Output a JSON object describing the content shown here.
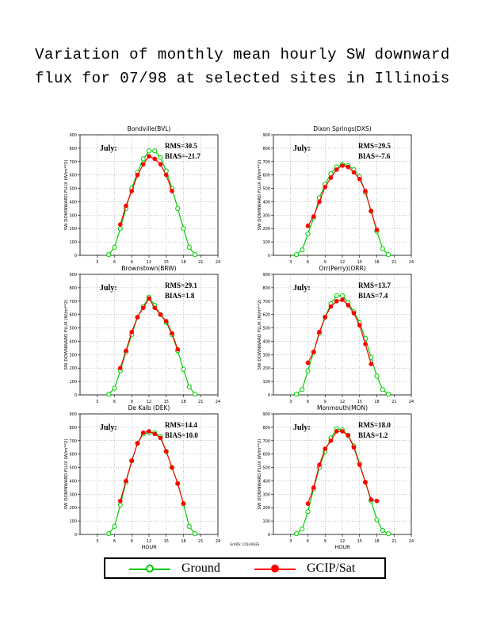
{
  "title_line1": "Variation of monthly mean hourly SW downward",
  "title_line2": "flux for 07/98 at selected sites in Illinois",
  "credit": "GrADS: COLA/IGES",
  "legend": {
    "ground_label": "Ground",
    "gcip_label": "GCIP/Sat",
    "ground_color": "#00cc00",
    "gcip_color": "#ff0000"
  },
  "chart_data": [
    {
      "type": "line",
      "title": "Bondville(BVL)",
      "annotation": "July:",
      "rms": "RMS=30.5",
      "bias": "BIAS=-21.7",
      "xlabel": "",
      "ylabel": "SW DOWNWARD FLUX (W/m**2)",
      "xlim": [
        0,
        24
      ],
      "ylim": [
        0,
        900
      ],
      "xticks": [
        3,
        6,
        9,
        12,
        15,
        18,
        21,
        24
      ],
      "yticks": [
        0,
        100,
        200,
        300,
        400,
        500,
        600,
        700,
        800,
        900
      ],
      "series": [
        {
          "name": "Ground",
          "x": [
            5,
            6,
            7,
            8,
            9,
            10,
            11,
            12,
            13,
            14,
            15,
            16,
            17,
            18,
            19,
            20
          ],
          "y": [
            5,
            60,
            200,
            350,
            500,
            620,
            720,
            780,
            780,
            730,
            630,
            500,
            350,
            200,
            60,
            5
          ]
        },
        {
          "name": "GCIP/Sat",
          "x": [
            7,
            8,
            9,
            10,
            11,
            12,
            13,
            14,
            15,
            16
          ],
          "y": [
            230,
            370,
            480,
            600,
            680,
            740,
            720,
            680,
            600,
            480
          ]
        }
      ]
    },
    {
      "type": "line",
      "title": "Dixon Springs(DXS)",
      "annotation": "July:",
      "rms": "RMS=29.5",
      "bias": "BIAS=-7.6",
      "xlabel": "",
      "ylabel": "SW DOWNWARD FLUX (W/m**2)",
      "xlim": [
        0,
        24
      ],
      "ylim": [
        0,
        900
      ],
      "xticks": [
        3,
        6,
        9,
        12,
        15,
        18,
        21,
        24
      ],
      "yticks": [
        0,
        100,
        200,
        300,
        400,
        500,
        600,
        700,
        800,
        900
      ],
      "series": [
        {
          "name": "Ground",
          "x": [
            4,
            5,
            6,
            7,
            8,
            9,
            10,
            11,
            12,
            13,
            14,
            15,
            16,
            17,
            18,
            19,
            20
          ],
          "y": [
            5,
            40,
            160,
            280,
            430,
            530,
            610,
            660,
            680,
            670,
            640,
            590,
            470,
            330,
            180,
            50,
            5
          ]
        },
        {
          "name": "GCIP/Sat",
          "x": [
            6,
            7,
            8,
            9,
            10,
            11,
            12,
            13,
            14,
            15,
            16,
            17,
            18
          ],
          "y": [
            220,
            290,
            400,
            510,
            580,
            640,
            670,
            660,
            620,
            570,
            480,
            330,
            190
          ]
        }
      ]
    },
    {
      "type": "line",
      "title": "Brownstown(BRW)",
      "annotation": "July:",
      "rms": "RMS=29.1",
      "bias": "BIAS=1.8",
      "xlabel": "",
      "ylabel": "SW DOWNWARD FLUX (W/m**2)",
      "xlim": [
        0,
        24
      ],
      "ylim": [
        0,
        900
      ],
      "xticks": [
        3,
        6,
        9,
        12,
        15,
        18,
        21,
        24
      ],
      "yticks": [
        0,
        100,
        200,
        300,
        400,
        500,
        600,
        700,
        800,
        900
      ],
      "series": [
        {
          "name": "Ground",
          "x": [
            5,
            6,
            7,
            8,
            9,
            10,
            11,
            12,
            13,
            14,
            15,
            16,
            17,
            18,
            19,
            20
          ],
          "y": [
            5,
            50,
            180,
            320,
            450,
            580,
            660,
            730,
            670,
            600,
            540,
            450,
            330,
            190,
            60,
            5
          ]
        },
        {
          "name": "GCIP/Sat",
          "x": [
            7,
            8,
            9,
            10,
            11,
            12,
            13,
            14,
            15,
            16,
            17
          ],
          "y": [
            200,
            330,
            470,
            580,
            650,
            720,
            650,
            600,
            550,
            460,
            340
          ]
        }
      ]
    },
    {
      "type": "line",
      "title": "Orr(Perry)(ORR)",
      "annotation": "July:",
      "rms": "RMS=13.7",
      "bias": "BIAS=7.4",
      "xlabel": "",
      "ylabel": "SW DOWNWARD FLUX (W/m**2)",
      "xlim": [
        0,
        24
      ],
      "ylim": [
        0,
        900
      ],
      "xticks": [
        3,
        6,
        9,
        12,
        15,
        18,
        21,
        24
      ],
      "yticks": [
        0,
        100,
        200,
        300,
        400,
        500,
        600,
        700,
        800,
        900
      ],
      "series": [
        {
          "name": "Ground",
          "x": [
            4,
            5,
            6,
            7,
            8,
            9,
            10,
            11,
            12,
            13,
            14,
            15,
            16,
            17,
            18,
            19,
            20
          ],
          "y": [
            5,
            40,
            180,
            320,
            460,
            580,
            680,
            740,
            740,
            690,
            620,
            540,
            420,
            280,
            140,
            40,
            5
          ]
        },
        {
          "name": "GCIP/Sat",
          "x": [
            6,
            7,
            8,
            9,
            10,
            11,
            12,
            13,
            14,
            15,
            16,
            17
          ],
          "y": [
            240,
            320,
            470,
            580,
            660,
            700,
            710,
            670,
            610,
            520,
            380,
            230
          ]
        }
      ]
    },
    {
      "type": "line",
      "title": "De Kalb (DEK)",
      "annotation": "July:",
      "rms": "RMS=14.4",
      "bias": "BIAS=10.0",
      "xlabel": "HOUR",
      "ylabel": "SW DOWNWARD FLUX (W/m**2)",
      "xlim": [
        0,
        24
      ],
      "ylim": [
        0,
        900
      ],
      "xticks": [
        3,
        6,
        9,
        12,
        15,
        18,
        21,
        24
      ],
      "yticks": [
        0,
        100,
        200,
        300,
        400,
        500,
        600,
        700,
        800,
        900
      ],
      "series": [
        {
          "name": "Ground",
          "x": [
            5,
            6,
            7,
            8,
            9,
            10,
            11,
            12,
            13,
            14,
            15,
            16,
            17,
            18,
            19,
            20
          ],
          "y": [
            5,
            60,
            220,
            390,
            550,
            680,
            750,
            760,
            760,
            730,
            620,
            500,
            380,
            230,
            60,
            5
          ]
        },
        {
          "name": "GCIP/Sat",
          "x": [
            7,
            8,
            9,
            10,
            11,
            12,
            13,
            14,
            15,
            16,
            17,
            18
          ],
          "y": [
            250,
            400,
            550,
            680,
            760,
            770,
            750,
            720,
            620,
            500,
            380,
            230
          ]
        }
      ]
    },
    {
      "type": "line",
      "title": "Monmouth(MON)",
      "annotation": "July:",
      "rms": "RMS=18.0",
      "bias": "BIAS=1.2",
      "xlabel": "HOUR",
      "ylabel": "SW DOWNWARD FLUX (W/m**2)",
      "xlim": [
        0,
        24
      ],
      "ylim": [
        0,
        900
      ],
      "xticks": [
        3,
        6,
        9,
        12,
        15,
        18,
        21,
        24
      ],
      "yticks": [
        0,
        100,
        200,
        300,
        400,
        500,
        600,
        700,
        800,
        900
      ],
      "series": [
        {
          "name": "Ground",
          "x": [
            4,
            5,
            6,
            7,
            8,
            9,
            10,
            11,
            12,
            13,
            14,
            15,
            16,
            17,
            18,
            19,
            20
          ],
          "y": [
            5,
            40,
            170,
            340,
            500,
            620,
            720,
            790,
            780,
            740,
            660,
            530,
            390,
            250,
            110,
            30,
            5
          ]
        },
        {
          "name": "GCIP/Sat",
          "x": [
            6,
            7,
            8,
            9,
            10,
            11,
            12,
            13,
            14,
            15,
            16,
            17,
            18
          ],
          "y": [
            230,
            350,
            520,
            640,
            700,
            770,
            770,
            740,
            650,
            520,
            390,
            260,
            250
          ]
        }
      ]
    }
  ]
}
